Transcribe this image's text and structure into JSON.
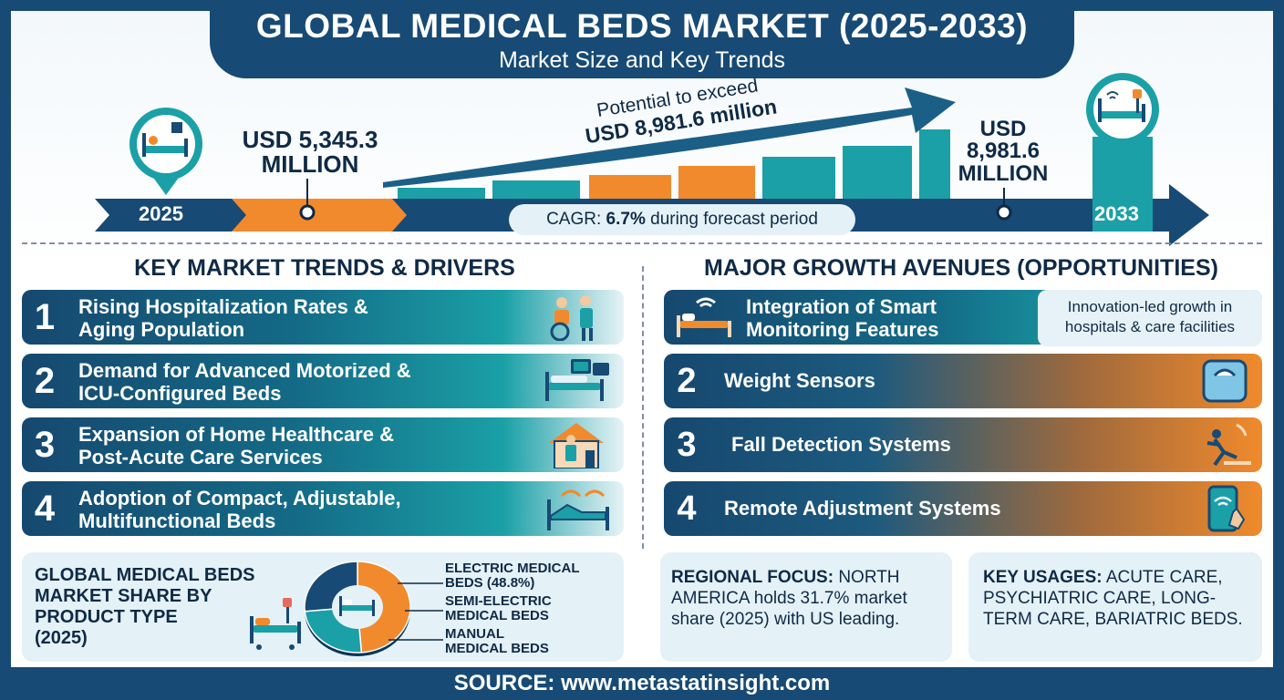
{
  "header": {
    "title": "GLOBAL MEDICAL BEDS MARKET (2025-2033)",
    "subtitle": "Market Size and Key Trends"
  },
  "timeline": {
    "start_year": "2025",
    "end_year": "2033",
    "start_value_line1": "USD 5,345.3",
    "start_value_line2": "MILLION",
    "end_value_line1": "USD",
    "end_value_line2": "8,981.6",
    "end_value_line3": "MILLION",
    "potential_line1": "Potential to exceed",
    "potential_line2": "USD 8,981.6 million",
    "cagr_prefix": "CAGR:",
    "cagr_value": "6.7%",
    "cagr_suffix": "during forecast period",
    "colors": {
      "navy": "#174a74",
      "orange": "#f08a2c",
      "teal": "#1aa0a6"
    }
  },
  "trends": {
    "title": "KEY MARKET TRENDS & DRIVERS",
    "items": [
      {
        "num": "1",
        "line1": "Rising Hospitalization Rates &",
        "line2": "Aging Population",
        "icon": "elderly-care-icon"
      },
      {
        "num": "2",
        "line1": "Demand for Advanced Motorized &",
        "line2": "ICU-Configured Beds",
        "icon": "icu-bed-icon"
      },
      {
        "num": "3",
        "line1": "Expansion of Home Healthcare &",
        "line2": "Post-Acute Care Services",
        "icon": "home-care-icon"
      },
      {
        "num": "4",
        "line1": "Adoption of Compact, Adjustable,",
        "line2": "Multifunctional Beds",
        "icon": "adjustable-bed-icon"
      }
    ]
  },
  "growth": {
    "title": "MAJOR GROWTH AVENUES (OPPORTUNITIES)",
    "items": [
      {
        "num": "",
        "line1": "Integration of Smart",
        "line2": "Monitoring Features",
        "icon": "smart-bed-icon"
      },
      {
        "num": "2",
        "label": "Weight Sensors",
        "icon": "scale-icon"
      },
      {
        "num": "3",
        "label": "Fall Detection Systems",
        "icon": "fall-detection-icon"
      },
      {
        "num": "4",
        "label": "Remote Adjustment Systems",
        "icon": "smartphone-icon"
      }
    ],
    "note_line1": "Innovation-led growth in",
    "note_line2": "hospitals & care facilities"
  },
  "chart_data": {
    "type": "pie",
    "title_line1": "GLOBAL MEDICAL BEDS",
    "title_line2": "MARKET SHARE BY",
    "title_line3": "PRODUCT TYPE",
    "title_line4": "(2025)",
    "categories": [
      "ELECTRIC MEDICAL BEDS",
      "SEMI-ELECTRIC MEDICAL BEDS",
      "MANUAL MEDICAL BEDS"
    ],
    "values": [
      48.8,
      24.7,
      26.5
    ],
    "colors": [
      "#f08a2c",
      "#1aa0a6",
      "#174a74"
    ],
    "legend": [
      {
        "line1": "ELECTRIC MEDICAL",
        "line2": "BEDS (48.8%)"
      },
      {
        "line1": "SEMI-ELECTRIC",
        "line2": "MEDICAL BEDS"
      },
      {
        "line1": "MANUAL",
        "line2": "MEDICAL BEDS"
      }
    ]
  },
  "regional": {
    "label": "REGIONAL FOCUS:",
    "text": "NORTH AMERICA holds 31.7% market share (2025) with US leading."
  },
  "usages": {
    "label": "KEY USAGES:",
    "text": "ACUTE CARE, PSYCHIATRIC CARE, LONG-TERM CARE, BARIATRIC BEDS."
  },
  "footer": {
    "source": "SOURCE: www.metastatinsight.com"
  }
}
